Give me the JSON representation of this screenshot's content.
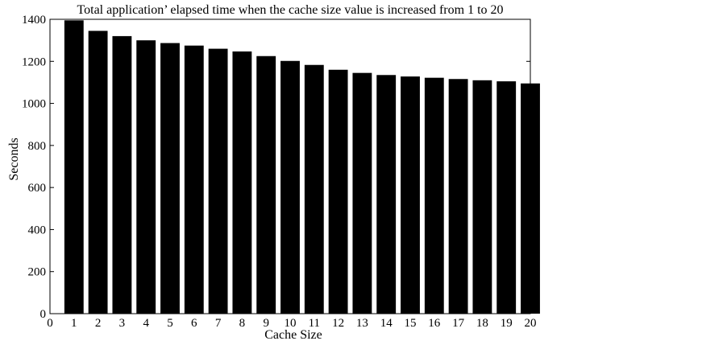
{
  "chart_data": {
    "type": "bar",
    "title": "Total application’ elapsed time when the cache size value is increased from 1 to 20",
    "xlabel": "Cache Size",
    "ylabel": "Seconds",
    "categories": [
      "1",
      "2",
      "3",
      "4",
      "5",
      "6",
      "7",
      "8",
      "9",
      "10",
      "11",
      "12",
      "13",
      "14",
      "15",
      "16",
      "17",
      "18",
      "19",
      "20"
    ],
    "values": [
      1395,
      1345,
      1320,
      1300,
      1287,
      1275,
      1260,
      1247,
      1225,
      1202,
      1183,
      1160,
      1145,
      1135,
      1128,
      1122,
      1116,
      1110,
      1105,
      1095
    ],
    "xlim": [
      0,
      20
    ],
    "ylim": [
      0,
      1400
    ],
    "xticks": [
      "0",
      "1",
      "2",
      "3",
      "4",
      "5",
      "6",
      "7",
      "8",
      "9",
      "10",
      "11",
      "12",
      "13",
      "14",
      "15",
      "16",
      "17",
      "18",
      "19",
      "20"
    ],
    "yticks": [
      "0",
      "200",
      "400",
      "600",
      "800",
      "1000",
      "1200",
      "1400"
    ],
    "bar_color": "#000000",
    "grid": false,
    "legend": "none"
  }
}
